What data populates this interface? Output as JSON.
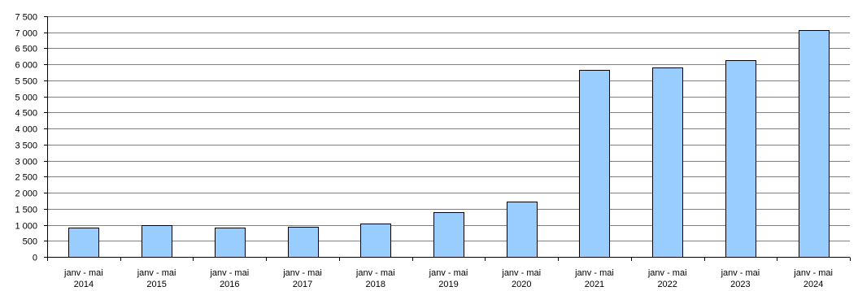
{
  "chart_data": {
    "type": "bar",
    "categories": [
      "janv - mai 2014",
      "janv - mai 2015",
      "janv - mai 2016",
      "janv - mai 2017",
      "janv - mai 2018",
      "janv - mai 2019",
      "janv - mai 2020",
      "janv - mai 2021",
      "janv - mai 2022",
      "janv - mai 2023",
      "janv - mai 2024"
    ],
    "category_lines": [
      [
        "janv - mai",
        "2014"
      ],
      [
        "janv - mai",
        "2015"
      ],
      [
        "janv - mai",
        "2016"
      ],
      [
        "janv - mai",
        "2017"
      ],
      [
        "janv - mai",
        "2018"
      ],
      [
        "janv - mai",
        "2019"
      ],
      [
        "janv - mai",
        "2020"
      ],
      [
        "janv - mai",
        "2021"
      ],
      [
        "janv - mai",
        "2022"
      ],
      [
        "janv - mai",
        "2023"
      ],
      [
        "janv - mai",
        "2024"
      ]
    ],
    "values": [
      900,
      980,
      920,
      930,
      1040,
      1390,
      1720,
      5840,
      5900,
      6120,
      7080
    ],
    "ylim": [
      0,
      7500
    ],
    "ytick_values": [
      0,
      500,
      1000,
      1500,
      2000,
      2500,
      3000,
      3500,
      4000,
      4500,
      5000,
      5500,
      6000,
      6500,
      7000,
      7500
    ],
    "ytick_labels": [
      "0",
      "500",
      "1 000",
      "1 500",
      "2 000",
      "2 500",
      "3 000",
      "3 500",
      "4 000",
      "4 500",
      "5 000",
      "5 500",
      "6 000",
      "6 500",
      "7 000",
      "7 500"
    ],
    "grid": true,
    "legend": "none",
    "title": "",
    "xlabel": "",
    "ylabel": "",
    "bar_color": "#99ccff",
    "bar_border_color": "#000000",
    "grid_color": "#808080"
  }
}
